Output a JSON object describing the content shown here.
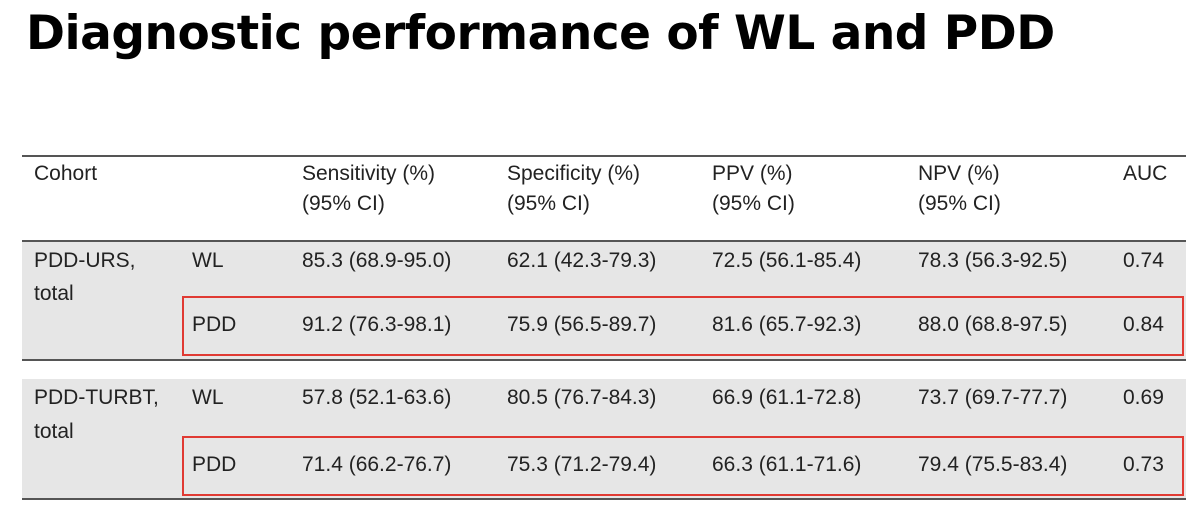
{
  "title": "Diagnostic performance of WL and PDD",
  "table": {
    "headers": [
      {
        "line1": "Cohort",
        "line2": ""
      },
      {
        "line1": "",
        "line2": ""
      },
      {
        "line1": "Sensitivity (%)",
        "line2": "(95% CI)"
      },
      {
        "line1": "Specificity (%)",
        "line2": "(95% CI)"
      },
      {
        "line1": "PPV (%)",
        "line2": "(95% CI)"
      },
      {
        "line1": "NPV (%)",
        "line2": "(95% CI)"
      },
      {
        "line1": "AUC",
        "line2": ""
      }
    ],
    "groups": [
      {
        "cohort_line1": "PDD-URS,",
        "cohort_line2": "total",
        "rows": [
          {
            "method": "WL",
            "sensitivity": "85.3 (68.9-95.0)",
            "specificity": "62.1 (42.3-79.3)",
            "ppv": "72.5 (56.1-85.4)",
            "npv": "78.3 (56.3-92.5)",
            "auc": "0.74",
            "highlighted": false
          },
          {
            "method": "PDD",
            "sensitivity": "91.2 (76.3-98.1)",
            "specificity": "75.9 (56.5-89.7)",
            "ppv": "81.6 (65.7-92.3)",
            "npv": "88.0 (68.8-97.5)",
            "auc": "0.84",
            "highlighted": true
          }
        ]
      },
      {
        "cohort_line1": "PDD-TURBT,",
        "cohort_line2": "total",
        "rows": [
          {
            "method": "WL",
            "sensitivity": "57.8 (52.1-63.6)",
            "specificity": "80.5 (76.7-84.3)",
            "ppv": "66.9 (61.1-72.8)",
            "npv": "73.7 (69.7-77.7)",
            "auc": "0.69",
            "highlighted": false
          },
          {
            "method": "PDD",
            "sensitivity": "71.4 (66.2-76.7)",
            "specificity": "75.3 (71.2-79.4)",
            "ppv": "66.3 (61.1-71.6)",
            "npv": "79.4 (75.5-83.4)",
            "auc": "0.73",
            "highlighted": true
          }
        ]
      }
    ]
  },
  "colors": {
    "highlight_border": "#e03a33",
    "row_band": "#e6e6e6"
  }
}
